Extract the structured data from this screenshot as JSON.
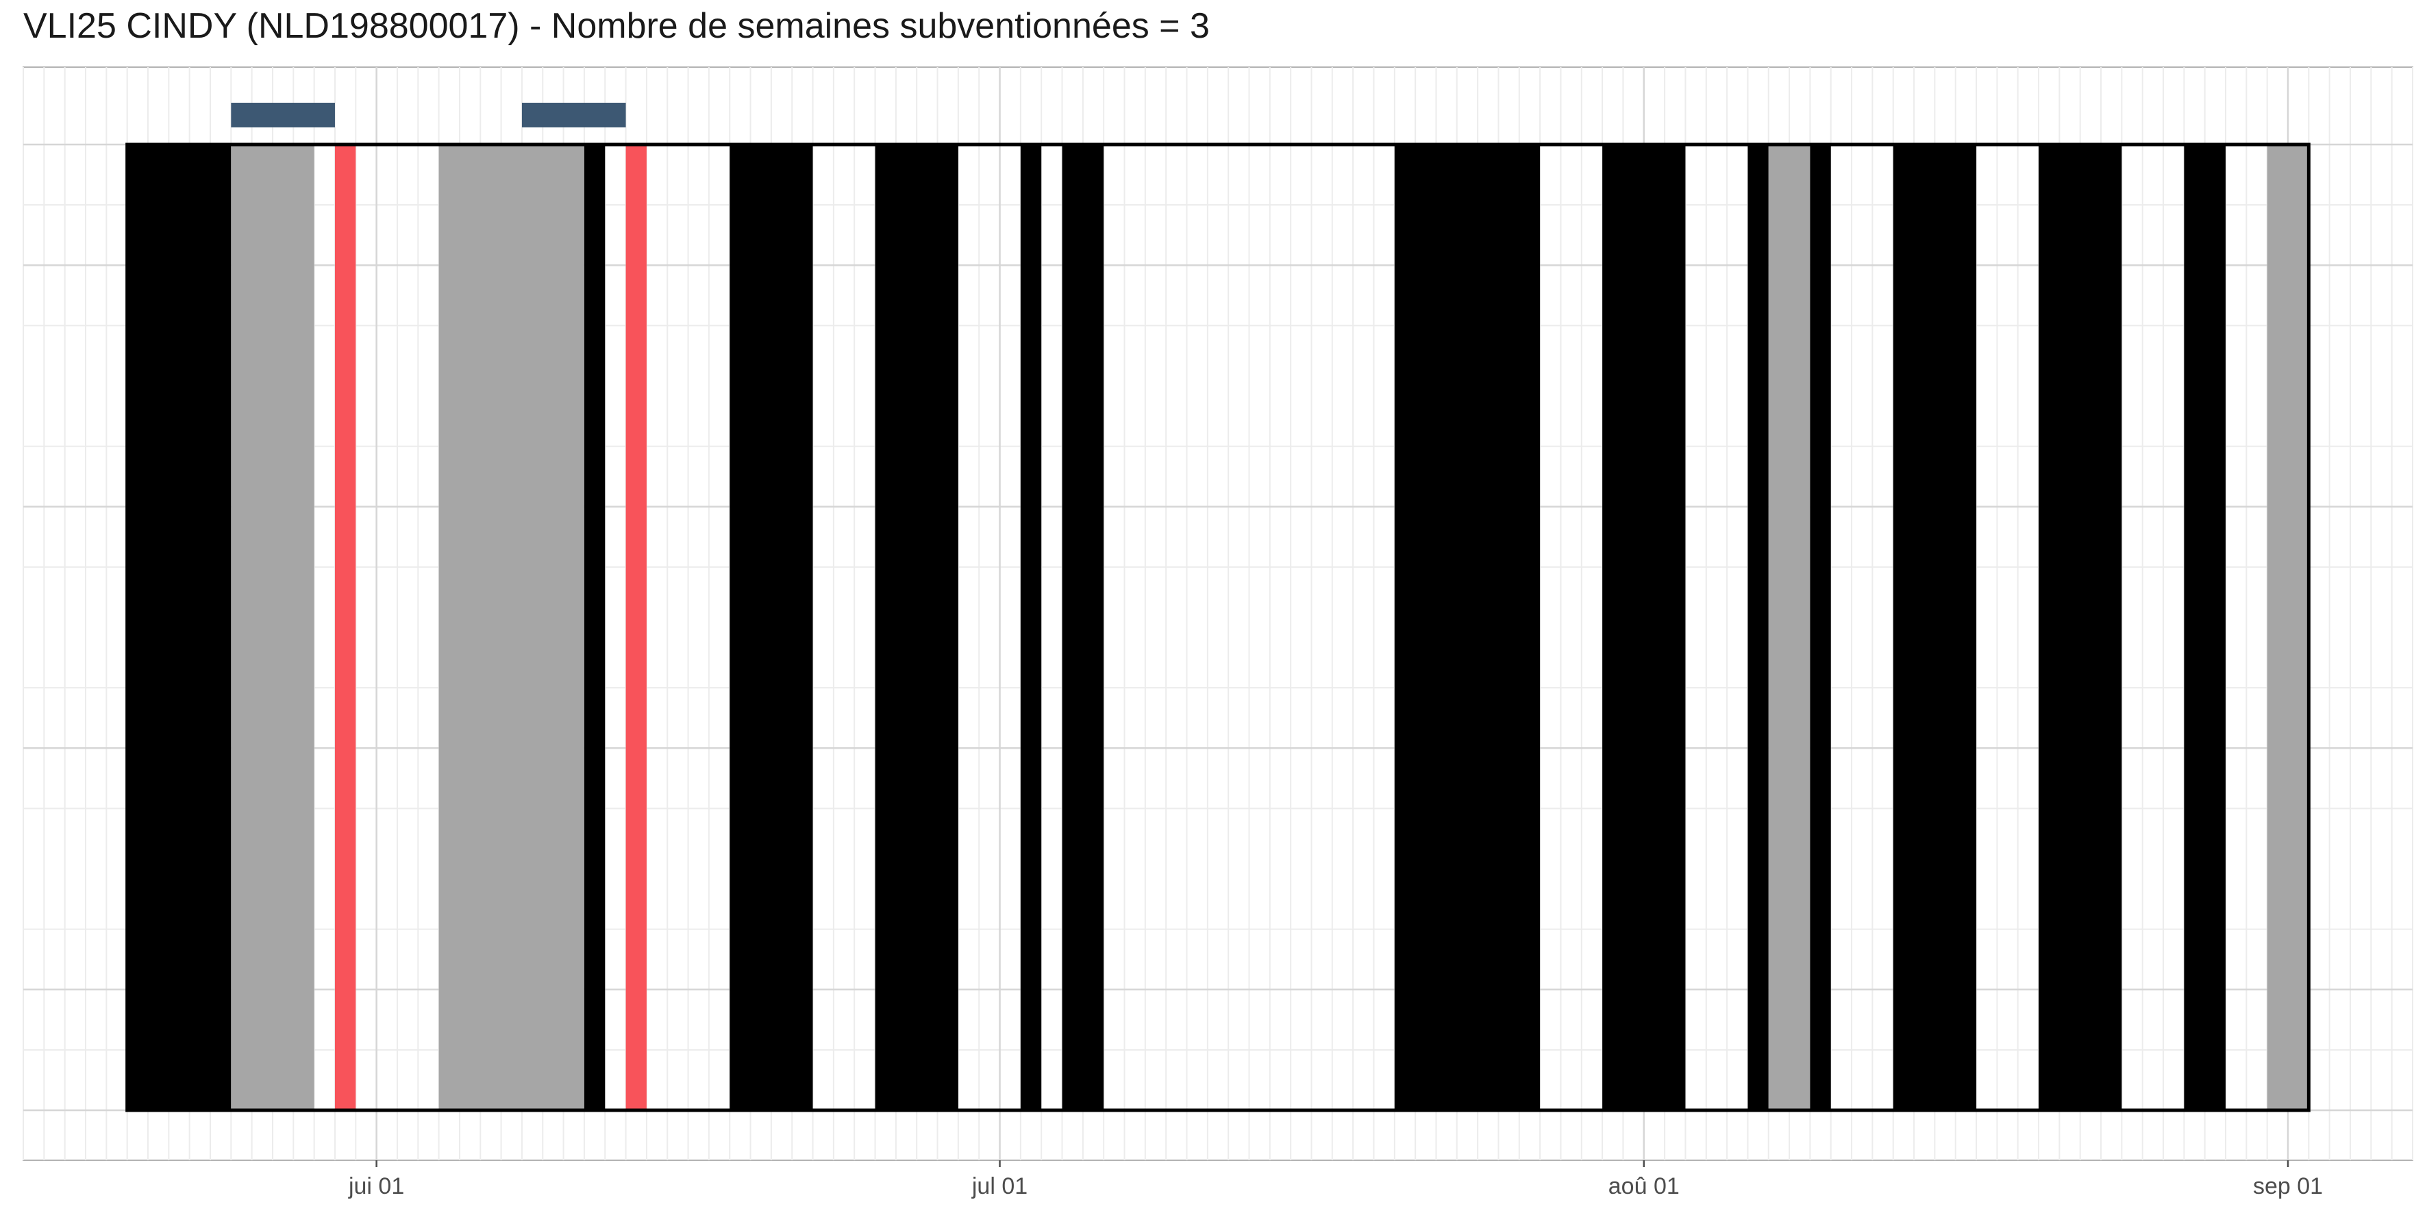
{
  "chart_data": {
    "type": "timeline",
    "title": "VLI25 CINDY (NLD198800017) - Nombre de semaines subventionnées = 3",
    "xlabel": "",
    "ylabel": "",
    "x_range": [
      "2023-05-15",
      "2023-09-07"
    ],
    "x_ticks": [
      {
        "date": "2023-06-01",
        "label": "jui 01"
      },
      {
        "date": "2023-07-01",
        "label": "jul 01"
      },
      {
        "date": "2023-08-01",
        "label": "aoû 01"
      },
      {
        "date": "2023-09-01",
        "label": "sep 01"
      }
    ],
    "period": {
      "start": "2023-05-20",
      "end": "2023-09-02"
    },
    "grid": true,
    "legend": "none",
    "colors": {
      "black": "#000000",
      "grey": "#a6a6a6",
      "red": "#f8535a",
      "marker": "#3d5873"
    },
    "segments": [
      {
        "start": "2023-05-20",
        "end": "2023-05-25",
        "color": "black"
      },
      {
        "start": "2023-05-25",
        "end": "2023-05-29",
        "color": "grey"
      },
      {
        "start": "2023-05-30",
        "end": "2023-05-31",
        "color": "red"
      },
      {
        "start": "2023-06-04",
        "end": "2023-06-11",
        "color": "grey"
      },
      {
        "start": "2023-06-11",
        "end": "2023-06-12",
        "color": "black"
      },
      {
        "start": "2023-06-13",
        "end": "2023-06-14",
        "color": "red"
      },
      {
        "start": "2023-06-18",
        "end": "2023-06-22",
        "color": "black"
      },
      {
        "start": "2023-06-25",
        "end": "2023-06-29",
        "color": "black"
      },
      {
        "start": "2023-07-02",
        "end": "2023-07-03",
        "color": "black"
      },
      {
        "start": "2023-07-04",
        "end": "2023-07-06",
        "color": "black"
      },
      {
        "start": "2023-07-20",
        "end": "2023-07-27",
        "color": "black"
      },
      {
        "start": "2023-07-30",
        "end": "2023-08-03",
        "color": "black"
      },
      {
        "start": "2023-08-06",
        "end": "2023-08-07",
        "color": "black"
      },
      {
        "start": "2023-08-07",
        "end": "2023-08-09",
        "color": "grey"
      },
      {
        "start": "2023-08-09",
        "end": "2023-08-10",
        "color": "black"
      },
      {
        "start": "2023-08-13",
        "end": "2023-08-17",
        "color": "black"
      },
      {
        "start": "2023-08-20",
        "end": "2023-08-24",
        "color": "black"
      },
      {
        "start": "2023-08-27",
        "end": "2023-08-29",
        "color": "black"
      },
      {
        "start": "2023-08-31",
        "end": "2023-09-02",
        "color": "grey"
      }
    ],
    "markers": [
      {
        "start": "2023-05-25",
        "end": "2023-05-30"
      },
      {
        "start": "2023-06-08",
        "end": "2023-06-13"
      }
    ]
  }
}
